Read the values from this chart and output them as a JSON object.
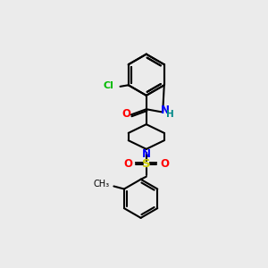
{
  "background_color": "#ebebeb",
  "bond_color": "#000000",
  "atom_colors": {
    "N": "#0000ff",
    "O": "#ff0000",
    "S": "#cccc00",
    "Cl": "#00bb00",
    "C": "#000000",
    "H": "#008888"
  },
  "figsize": [
    3.0,
    3.0
  ],
  "dpi": 100
}
